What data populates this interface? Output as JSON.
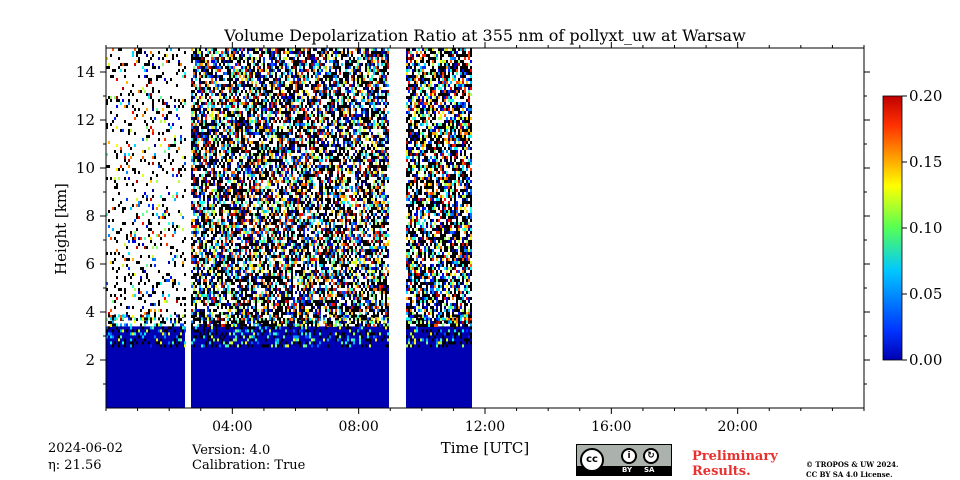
{
  "chart_data": {
    "type": "heatmap",
    "title": "Volume Depolarization Ratio at 355 nm of pollyxt_uw at Warsaw",
    "xlabel": "Time [UTC]",
    "ylabel": "Height [km]",
    "xlim_hours": [
      0,
      24
    ],
    "ylim_km": [
      0,
      15
    ],
    "x_tick_labels": [
      "04:00",
      "08:00",
      "12:00",
      "16:00",
      "20:00"
    ],
    "x_tick_hours": [
      4,
      8,
      12,
      16,
      20
    ],
    "y_ticks": [
      2,
      4,
      6,
      8,
      10,
      12,
      14
    ],
    "colorbar": {
      "ticks": [
        "0.00",
        "0.05",
        "0.10",
        "0.15",
        "0.20"
      ],
      "tick_values": [
        0,
        0.05,
        0.1,
        0.15,
        0.2
      ],
      "range": [
        0,
        0.2
      ],
      "colormap": "jet"
    },
    "data_segments_hours": [
      {
        "start": 0.0,
        "end": 2.5
      },
      {
        "start": 2.7,
        "end": 8.95
      },
      {
        "start": 9.5,
        "end": 11.6
      }
    ],
    "boundary_layer_top_km": 3.4,
    "near_surface_value": 0.01,
    "grid": false
  },
  "meta": {
    "date": "2024-06-02",
    "eta_label": "η: 21.56",
    "version": "Version: 4.0",
    "calibration": "Calibration: True"
  },
  "footer": {
    "preliminary_line1": "Preliminary",
    "preliminary_line2": "Results.",
    "copyright_line1": "© TROPOS & UW 2024.",
    "copyright_line2": "CC BY SA 4.0 License.",
    "license_badge": {
      "cc": "cc",
      "by": "BY",
      "sa": "SA",
      "icon_names": [
        "creative-commons-icon",
        "attribution-icon",
        "share-alike-icon"
      ]
    }
  }
}
